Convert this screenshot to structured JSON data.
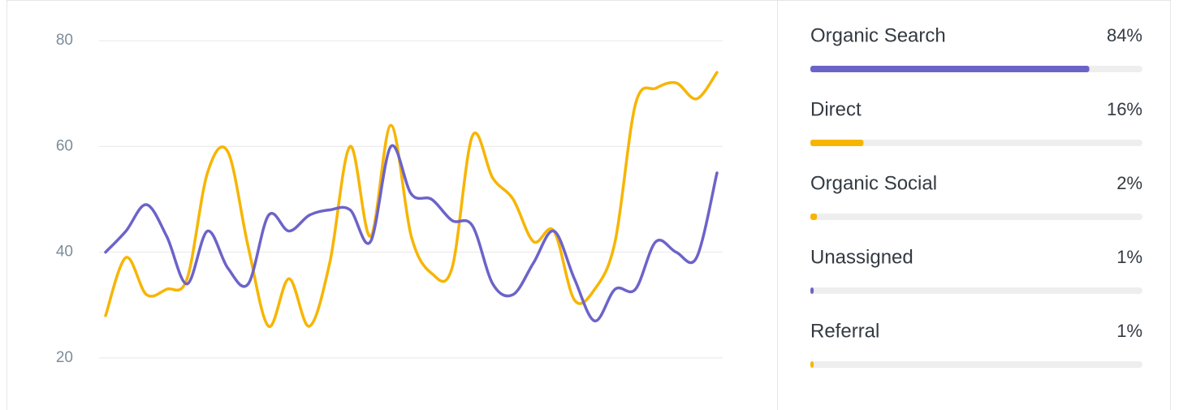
{
  "chart_data": [
    {
      "type": "line",
      "categories": [
        null,
        null,
        null,
        null,
        null,
        null,
        null,
        null,
        null,
        null,
        null,
        null,
        null,
        null,
        null,
        null,
        null,
        null,
        null,
        null,
        null,
        null,
        null,
        null,
        null,
        null,
        null,
        null,
        null,
        null,
        null
      ],
      "series": [
        {
          "color": "#f7b500",
          "values": [
            28,
            39,
            32,
            33,
            35,
            55,
            59,
            41,
            26,
            35,
            26,
            38,
            60,
            43,
            64,
            43,
            36,
            37,
            62,
            54,
            50,
            42,
            44,
            31,
            33,
            42,
            68,
            71,
            72,
            69,
            74
          ]
        },
        {
          "color": "#6c63c9",
          "values": [
            40,
            44,
            49,
            43,
            34,
            44,
            37,
            34,
            47,
            44,
            47,
            48,
            48,
            42,
            60,
            51,
            50,
            46,
            45,
            34,
            32,
            38,
            44,
            35,
            27,
            33,
            33,
            42,
            40,
            39,
            55
          ]
        }
      ],
      "ylim": [
        14,
        86
      ],
      "yticks": [
        20,
        40,
        60,
        80
      ],
      "grid": true
    },
    {
      "type": "progress",
      "categories": [
        "Organic Search",
        "Direct",
        "Organic Social",
        "Unassigned",
        "Referral"
      ],
      "values": [
        84,
        16,
        2,
        1,
        1
      ],
      "value_labels": [
        "84%",
        "16%",
        "2%",
        "1%",
        "1%"
      ],
      "colors": [
        "#6c63c9",
        "#f7b500",
        "#f7b500",
        "#6c63c9",
        "#f7b500"
      ],
      "xlim": [
        0,
        100
      ]
    }
  ]
}
